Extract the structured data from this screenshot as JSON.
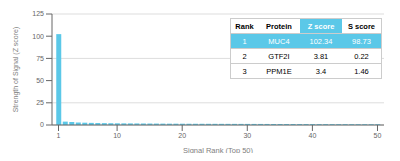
{
  "chart_data": {
    "type": "bar",
    "x": [
      1,
      2,
      3,
      4,
      5,
      6,
      7,
      8,
      9,
      10,
      11,
      12,
      13,
      14,
      15,
      16,
      17,
      18,
      19,
      20,
      21,
      22,
      23,
      24,
      25,
      26,
      27,
      28,
      29,
      30,
      31,
      32,
      33,
      34,
      35,
      36,
      37,
      38,
      39,
      40,
      41,
      42,
      43,
      44,
      45,
      46,
      47,
      48,
      49,
      50
    ],
    "values": [
      102.34,
      3.81,
      3.4,
      2.8,
      2.6,
      2.4,
      2.2,
      2.1,
      2.0,
      1.9,
      1.85,
      1.8,
      1.75,
      1.7,
      1.65,
      1.6,
      1.55,
      1.5,
      1.48,
      1.45,
      1.42,
      1.4,
      1.38,
      1.36,
      1.34,
      1.32,
      1.3,
      1.28,
      1.26,
      1.24,
      1.22,
      1.2,
      1.18,
      1.16,
      1.14,
      1.12,
      1.1,
      1.08,
      1.06,
      1.04,
      1.02,
      1.0,
      0.98,
      0.96,
      0.94,
      0.92,
      0.9,
      0.88,
      0.86,
      0.84
    ],
    "color": "#5bc8e8",
    "xlabel": "Signal Rank (Top 50)",
    "ylabel": "Strength of Signal (Z score)",
    "xlim": [
      0,
      51
    ],
    "xticks": [
      1,
      10,
      20,
      30,
      40,
      50
    ],
    "ylim": [
      0,
      125
    ],
    "yticks": [
      0,
      25,
      50,
      75,
      100,
      125
    ],
    "grid": true,
    "table": {
      "rows": [
        [
          "Rank",
          "Protein",
          "Z score",
          "S score"
        ],
        [
          "1",
          "MUC4",
          "102.34",
          "98.73"
        ],
        [
          "2",
          "GTF2I",
          "3.81",
          "0.22"
        ],
        [
          "3",
          "PPM1E",
          "3.4",
          "1.46"
        ]
      ],
      "highlight_row": 1,
      "highlight_column": 2
    }
  }
}
